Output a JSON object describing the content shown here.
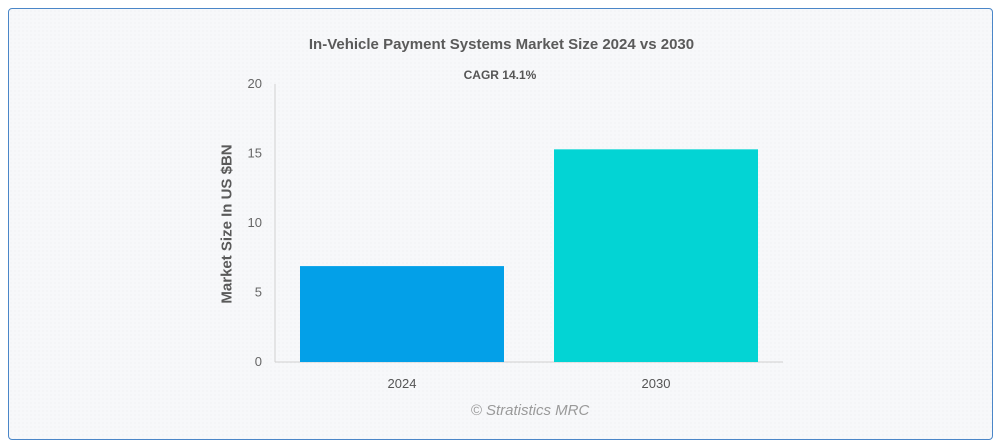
{
  "chart_data": {
    "type": "bar",
    "title": "In-Vehicle Payment Systems Market Size 2024 vs 2030",
    "subtitle": "CAGR 14.1%",
    "xlabel": "",
    "ylabel": "Market Size In US $BN",
    "categories": [
      "2024",
      "2030"
    ],
    "values": [
      6.9,
      15.3
    ],
    "colors": [
      "#03a0e8",
      "#03d4d4"
    ],
    "ylim": [
      0,
      20
    ],
    "yticks": [
      "0",
      "5",
      "10",
      "15",
      "20"
    ],
    "grid": false,
    "legend": "none"
  },
  "watermark": "© Stratistics MRC"
}
